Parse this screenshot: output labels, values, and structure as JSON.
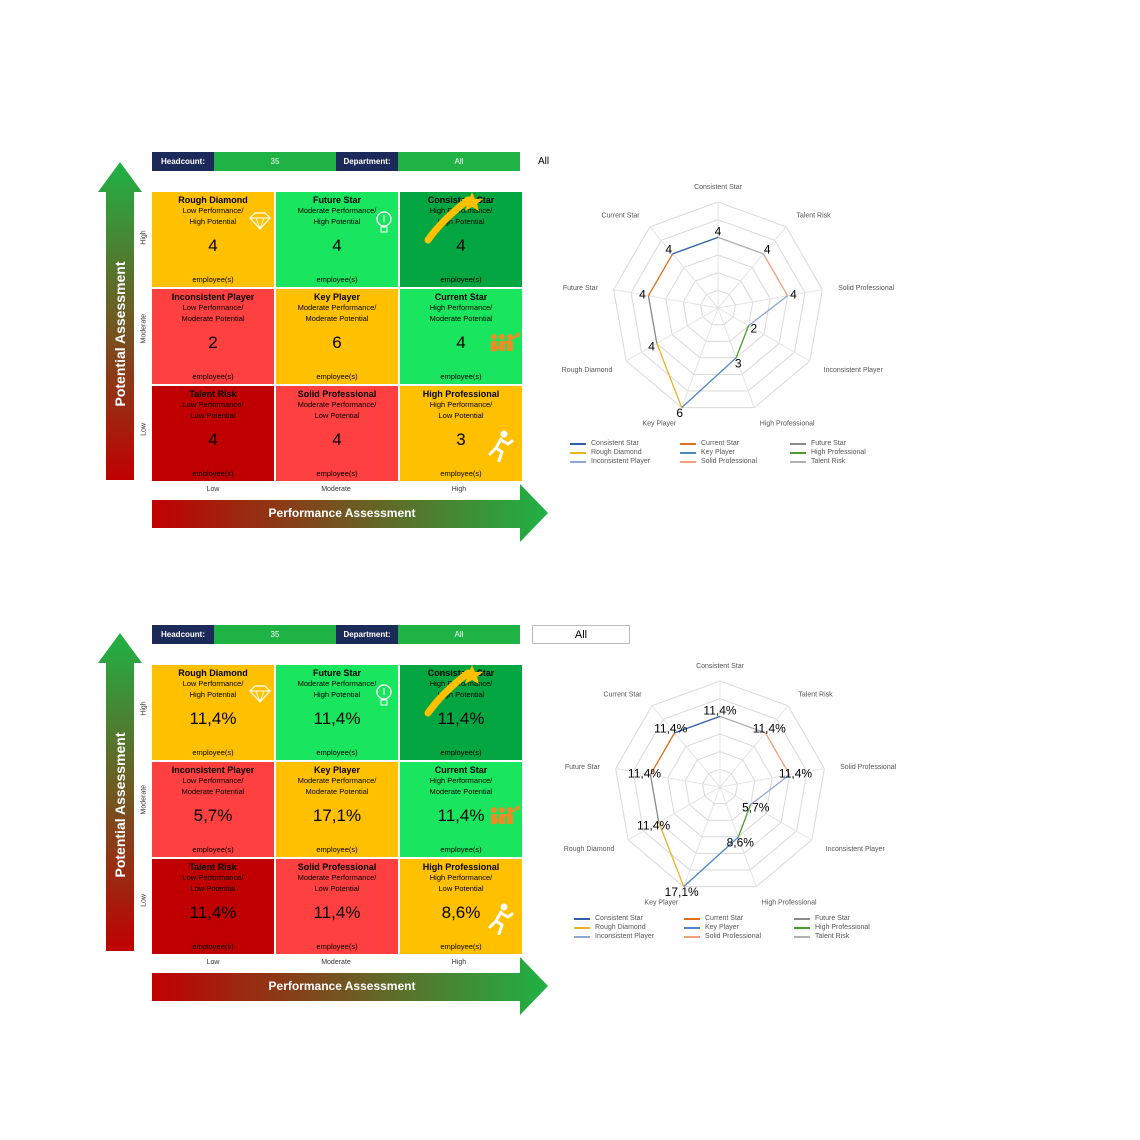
{
  "panels": [
    {
      "header": {
        "headcount_label": "Headcount:",
        "headcount_value": "35",
        "department_label": "Department:",
        "department_value": "All"
      },
      "department_selection": "All",
      "y_axis_title": "Potential Assessment",
      "x_axis_title": "Performance Assessment",
      "row_labels": [
        "High",
        "Moderate",
        "Low"
      ],
      "col_labels": [
        "Low",
        "Moderate",
        "High"
      ],
      "cells": [
        {
          "title": "Rough Diamond",
          "sub1": "Low Performance/",
          "sub2": "High Potential",
          "value": "4",
          "unit": "employee(s)",
          "icon": "diamond-icon"
        },
        {
          "title": "Future Star",
          "sub1": "Moderate Performance/",
          "sub2": "High Potential",
          "value": "4",
          "unit": "employee(s)",
          "icon": "lightbulb-icon"
        },
        {
          "title": "Consistent Star",
          "sub1": "High Performance/",
          "sub2": "High Potential",
          "value": "4",
          "unit": "employee(s)",
          "icon": "shooting-star-icon"
        },
        {
          "title": "Inconsistent Player",
          "sub1": "Low Performance/",
          "sub2": "Moderate Potential",
          "value": "2",
          "unit": "employee(s)",
          "icon": ""
        },
        {
          "title": "Key Player",
          "sub1": "Moderate Performance/",
          "sub2": "Moderate Potential",
          "value": "6",
          "unit": "employee(s)",
          "icon": ""
        },
        {
          "title": "Current Star",
          "sub1": "High Performance/",
          "sub2": "Moderate Potential",
          "value": "4",
          "unit": "employee(s)",
          "icon": "team-growth-icon"
        },
        {
          "title": "Talent Risk",
          "sub1": "Low Performance/",
          "sub2": "Low Potential",
          "value": "4",
          "unit": "employee(s)",
          "icon": ""
        },
        {
          "title": "Solid Professional",
          "sub1": "Moderate Performance/",
          "sub2": "Low Potential",
          "value": "4",
          "unit": "employee(s)",
          "icon": ""
        },
        {
          "title": "High Professional",
          "sub1": "High Performance/",
          "sub2": "Low Potential",
          "value": "3",
          "unit": "employee(s)",
          "icon": "runner-icon"
        }
      ],
      "chart_data": {
        "type": "radar",
        "axes": [
          "Consistent Star",
          "Talent Risk",
          "Solid Professional",
          "Inconsistent Player",
          "High Professional",
          "Key Player",
          "Rough Diamond",
          "Future Star",
          "Current Star"
        ],
        "values": [
          4,
          4,
          4,
          2,
          3,
          6,
          4,
          4,
          4
        ],
        "value_labels": [
          "4",
          "4",
          "4",
          "2",
          "3",
          "6",
          "4",
          "4",
          "4"
        ],
        "max": 6,
        "legend": [
          "Consistent Star",
          "Current Star",
          "Future Star",
          "Rough Diamond",
          "Key Player",
          "High Professional",
          "Inconsistent Player",
          "Solid Professional",
          "Talent Risk"
        ]
      }
    },
    {
      "header": {
        "headcount_label": "Headcount:",
        "headcount_value": "35",
        "department_label": "Department:",
        "department_value": "All"
      },
      "department_selection": "All",
      "y_axis_title": "Potential Assessment",
      "x_axis_title": "Performance Assessment",
      "row_labels": [
        "High",
        "Moderate",
        "Low"
      ],
      "col_labels": [
        "Low",
        "Moderate",
        "High"
      ],
      "cells": [
        {
          "title": "Rough Diamond",
          "sub1": "Low Performance/",
          "sub2": "High Potential",
          "value": "11,4%",
          "unit": "employee(s)",
          "icon": "diamond-icon"
        },
        {
          "title": "Future Star",
          "sub1": "Moderate Performance/",
          "sub2": "High Potential",
          "value": "11,4%",
          "unit": "employee(s)",
          "icon": "lightbulb-icon"
        },
        {
          "title": "Consistent Star",
          "sub1": "High Performance/",
          "sub2": "High Potential",
          "value": "11,4%",
          "unit": "employee(s)",
          "icon": "shooting-star-icon"
        },
        {
          "title": "Inconsistent Player",
          "sub1": "Low Performance/",
          "sub2": "Moderate Potential",
          "value": "5,7%",
          "unit": "employee(s)",
          "icon": ""
        },
        {
          "title": "Key Player",
          "sub1": "Moderate Performance/",
          "sub2": "Moderate Potential",
          "value": "17,1%",
          "unit": "employee(s)",
          "icon": ""
        },
        {
          "title": "Current Star",
          "sub1": "High Performance/",
          "sub2": "Moderate Potential",
          "value": "11,4%",
          "unit": "employee(s)",
          "icon": "team-growth-icon"
        },
        {
          "title": "Talent Risk",
          "sub1": "Low Performance/",
          "sub2": "Low Potential",
          "value": "11,4%",
          "unit": "employee(s)",
          "icon": ""
        },
        {
          "title": "Solid Professional",
          "sub1": "Moderate Performance/",
          "sub2": "Low Potential",
          "value": "11,4%",
          "unit": "employee(s)",
          "icon": ""
        },
        {
          "title": "High Professional",
          "sub1": "High Performance/",
          "sub2": "Low Potential",
          "value": "8,6%",
          "unit": "employee(s)",
          "icon": "runner-icon"
        }
      ],
      "chart_data": {
        "type": "radar",
        "axes": [
          "Consistent Star",
          "Talent Risk",
          "Solid Professional",
          "Inconsistent Player",
          "High Professional",
          "Key Player",
          "Rough Diamond",
          "Future Star",
          "Current Star"
        ],
        "values": [
          11.4,
          11.4,
          11.4,
          5.7,
          8.6,
          17.1,
          11.4,
          11.4,
          11.4
        ],
        "value_labels": [
          "11,4%",
          "11,4%",
          "11,4%",
          "5,7%",
          "8,6%",
          "17,1%",
          "11,4%",
          "11,4%",
          "11,4%"
        ],
        "max": 17.1,
        "legend": [
          "Consistent Star",
          "Current Star",
          "Future Star",
          "Rough Diamond",
          "Key Player",
          "High Professional",
          "Inconsistent Player",
          "Solid Professional",
          "Talent Risk"
        ]
      }
    }
  ],
  "colors": {
    "orange": "#ffc000",
    "light_green": "#19e55f",
    "dark_green": "#04a641",
    "red": "#ff4040",
    "dark_red": "#c00000",
    "header_navy": "#1c2a5a",
    "header_green": "#1fb245",
    "series": [
      "#2e5fa8",
      "#e0701e",
      "#8a8a8a",
      "#e8b421",
      "#4d86c6",
      "#4a9a2e",
      "#8fa6d8",
      "#f0a07a",
      "#b0b0b0"
    ]
  }
}
